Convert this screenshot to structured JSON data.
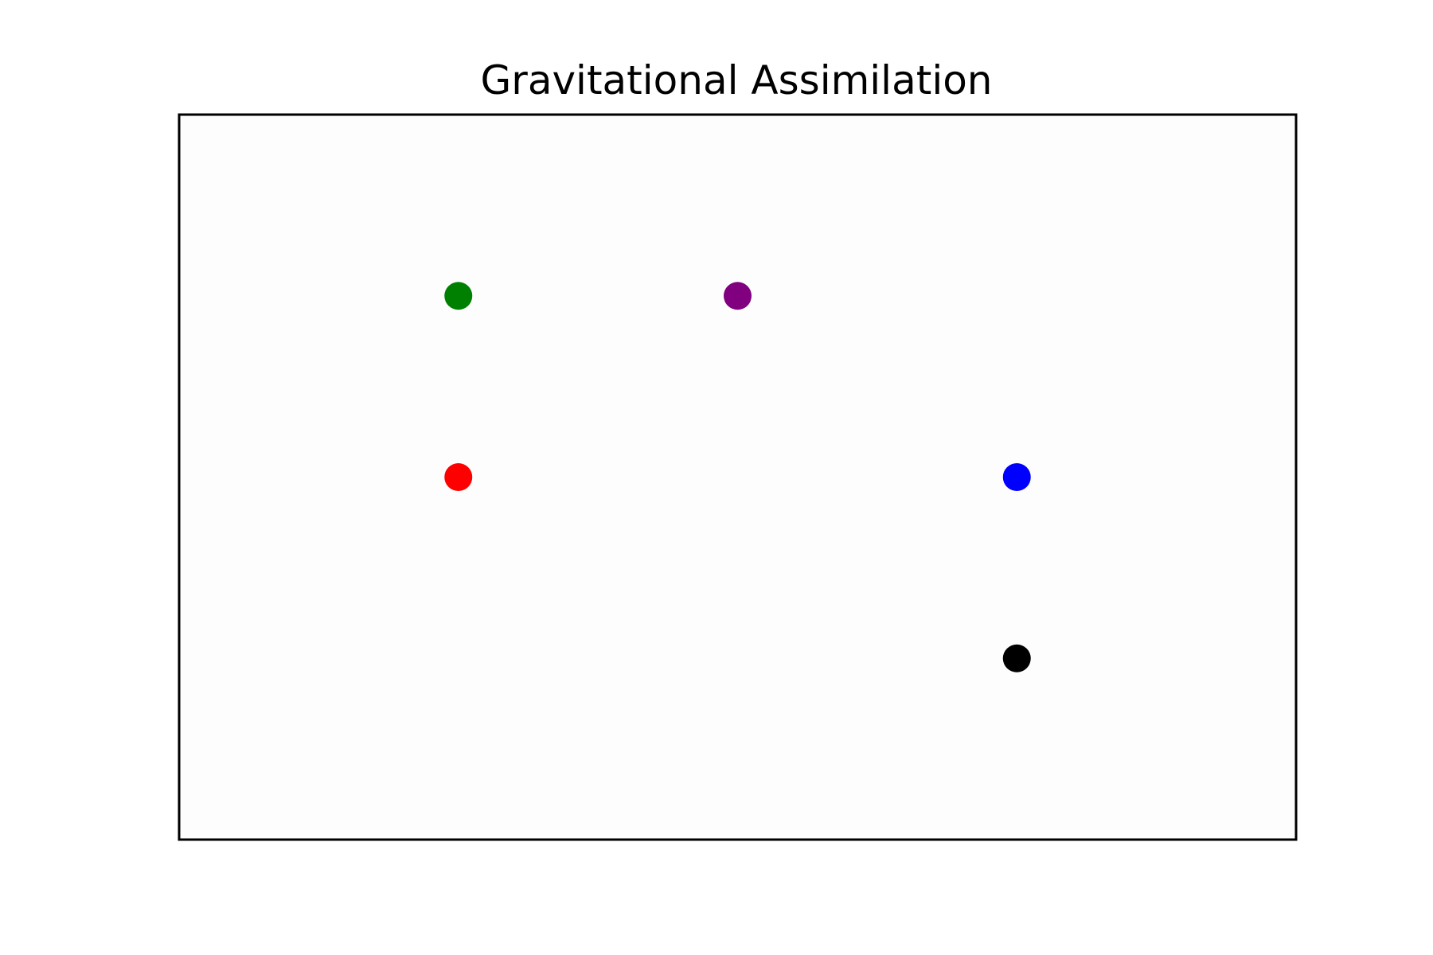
{
  "chart_data": {
    "type": "scatter",
    "title": "Gravitational Assimilation",
    "xlabel": "",
    "ylabel": "",
    "xlim": [
      0,
      8
    ],
    "ylim": [
      0,
      8
    ],
    "grid": false,
    "axes_ticks_visible": false,
    "axes_background": "#fdfdfd",
    "points": [
      {
        "x": 2.0,
        "y": 6.0,
        "color": "#008000"
      },
      {
        "x": 4.0,
        "y": 6.0,
        "color": "#800080"
      },
      {
        "x": 2.0,
        "y": 4.0,
        "color": "#ff0000"
      },
      {
        "x": 6.0,
        "y": 4.0,
        "color": "#0000ff"
      },
      {
        "x": 6.0,
        "y": 2.0,
        "color": "#000000"
      }
    ]
  }
}
